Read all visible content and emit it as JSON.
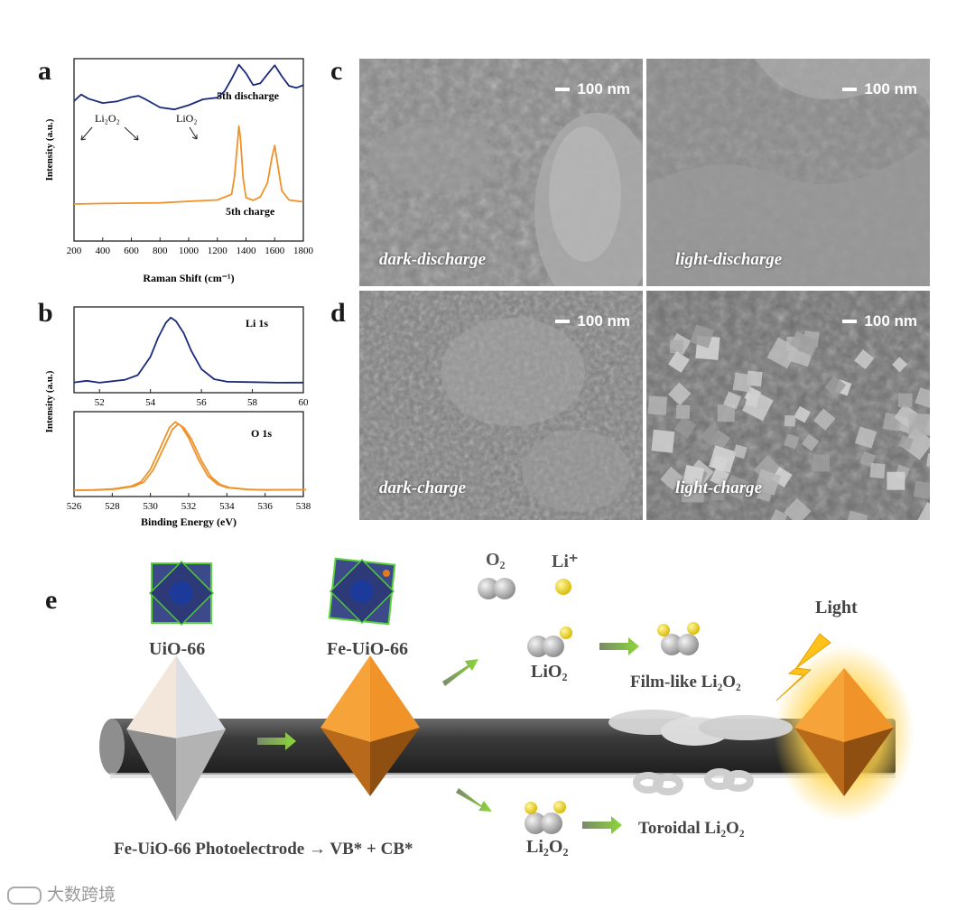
{
  "panels": {
    "a": "a",
    "b": "b",
    "c": "c",
    "d": "d",
    "e": "e"
  },
  "colors": {
    "navy": "#1a2a7a",
    "orange": "#f0922a",
    "sem_gray": "#8a8a8a"
  },
  "chart_data": [
    {
      "type": "line",
      "panel": "a",
      "xlabel": "Raman Shift (cm⁻¹)",
      "ylabel": "Intensity (a.u.)",
      "xlim": [
        200,
        1800
      ],
      "xticks": [
        "200",
        "400",
        "600",
        "800",
        "1000",
        "1200",
        "1400",
        "1600",
        "1800"
      ],
      "annotations": [
        "Li₂O₂",
        "LiO₂"
      ],
      "series": [
        {
          "name": "5th discharge",
          "color": "#1a2a7a",
          "x": [
            200,
            250,
            300,
            400,
            500,
            600,
            650,
            700,
            800,
            900,
            1000,
            1100,
            1200,
            1250,
            1300,
            1350,
            1400,
            1450,
            1500,
            1550,
            1600,
            1650,
            1700,
            1750,
            1800
          ],
          "y": [
            0.78,
            0.82,
            0.79,
            0.76,
            0.77,
            0.8,
            0.81,
            0.79,
            0.74,
            0.73,
            0.76,
            0.8,
            0.81,
            0.85,
            0.93,
            1.02,
            0.96,
            0.88,
            0.89,
            0.95,
            1.01,
            0.94,
            0.88,
            0.87,
            0.89
          ]
        },
        {
          "name": "5th charge",
          "color": "#f0922a",
          "x": [
            200,
            400,
            600,
            800,
            1000,
            1200,
            1300,
            1320,
            1340,
            1350,
            1360,
            1380,
            1400,
            1450,
            1500,
            1550,
            1580,
            1600,
            1620,
            1650,
            1700,
            1800
          ],
          "y": [
            0.1,
            0.1,
            0.1,
            0.1,
            0.11,
            0.12,
            0.16,
            0.28,
            0.5,
            0.62,
            0.55,
            0.28,
            0.15,
            0.13,
            0.15,
            0.24,
            0.4,
            0.48,
            0.36,
            0.18,
            0.12,
            0.11
          ]
        }
      ]
    },
    {
      "type": "line",
      "panel": "b-top",
      "ylabel": "Intensity (a.u.)",
      "xlim": [
        51,
        60
      ],
      "xticks": [
        "52",
        "54",
        "56",
        "58",
        "60"
      ],
      "series": [
        {
          "name": "Li 1s",
          "color": "#1a2a7a",
          "x": [
            51,
            51.5,
            52,
            52.5,
            53,
            53.5,
            54,
            54.3,
            54.6,
            54.8,
            55,
            55.3,
            55.6,
            56,
            56.5,
            57,
            58,
            59,
            60
          ],
          "y": [
            0.05,
            0.07,
            0.04,
            0.06,
            0.08,
            0.15,
            0.42,
            0.7,
            0.92,
            1.0,
            0.95,
            0.78,
            0.52,
            0.25,
            0.1,
            0.06,
            0.05,
            0.04,
            0.04
          ]
        }
      ]
    },
    {
      "type": "line",
      "panel": "b-bottom",
      "xlabel": "Binding Energy (eV)",
      "xlim": [
        526,
        538
      ],
      "xticks": [
        "526",
        "528",
        "530",
        "532",
        "534",
        "536",
        "538"
      ],
      "series": [
        {
          "name": "O 1s",
          "color": "#f0922a",
          "x": [
            526,
            527,
            528,
            529,
            529.5,
            530,
            530.5,
            531,
            531.3,
            531.6,
            532,
            532.5,
            533,
            533.5,
            534,
            535,
            536,
            537,
            538
          ],
          "y": [
            0.03,
            0.03,
            0.04,
            0.08,
            0.14,
            0.32,
            0.62,
            0.92,
            1.0,
            0.95,
            0.78,
            0.48,
            0.24,
            0.12,
            0.07,
            0.04,
            0.03,
            0.03,
            0.03
          ]
        }
      ]
    }
  ],
  "sem": {
    "scale": "100 nm",
    "c_left": "dark-discharge",
    "c_right": "light-discharge",
    "d_left": "dark-charge",
    "d_right": "light-charge"
  },
  "scheme": {
    "o2": "O₂",
    "li_plus": "Li⁺",
    "uio66": "UiO-66",
    "fe_uio66": "Fe-UiO-66",
    "lio2": "LiO₂",
    "film": "Film-like Li₂O₂",
    "light": "Light",
    "li2o2": "Li₂O₂",
    "toroidal": "Toroidal Li₂O₂",
    "equation": "Fe-UiO-66 Photoelectrode → VB* + CB*"
  },
  "watermark": "大数跨境"
}
